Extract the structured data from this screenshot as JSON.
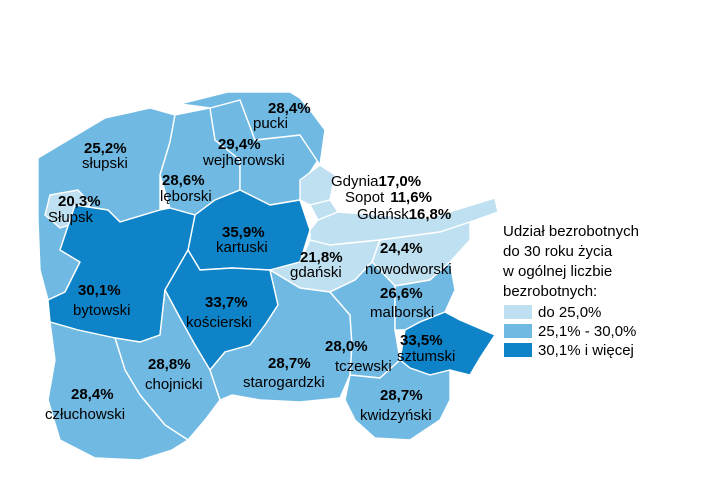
{
  "colors": {
    "low": "#bfe0f1",
    "mid": "#6fb9e3",
    "high": "#0e83c8",
    "border": "#ffffff"
  },
  "legend": {
    "title_lines": [
      "Udział bezrobotnych",
      "do 30 roku życia",
      "w ogólnej liczbie",
      "bezrobotnych:"
    ],
    "items": [
      {
        "label": "do 25,0%",
        "level": "low"
      },
      {
        "label": "25,1% - 30,0%",
        "level": "mid"
      },
      {
        "label": "30,1% i więcej",
        "level": "high"
      }
    ]
  },
  "regions": [
    {
      "id": "pucki",
      "name": "pucki",
      "value": "28,4%",
      "level": "mid"
    },
    {
      "id": "slupski",
      "name": "słupski",
      "value": "25,2%",
      "level": "mid"
    },
    {
      "id": "wejherowski",
      "name": "wejherowski",
      "value": "29,4%",
      "level": "mid"
    },
    {
      "id": "leborski",
      "name": "lęborski",
      "value": "28,6%",
      "level": "mid"
    },
    {
      "id": "slupsk",
      "name": "Słupsk",
      "value": "20,3%",
      "level": "low"
    },
    {
      "id": "kartuski",
      "name": "kartuski",
      "value": "35,9%",
      "level": "high"
    },
    {
      "id": "gdanski",
      "name": "gdański",
      "value": "21,8%",
      "level": "low"
    },
    {
      "id": "nowodworski",
      "name": "nowodworski",
      "value": "24,4%",
      "level": "low"
    },
    {
      "id": "bytowski",
      "name": "bytowski",
      "value": "30,1%",
      "level": "high"
    },
    {
      "id": "koscierski",
      "name": "kościerski",
      "value": "33,7%",
      "level": "high"
    },
    {
      "id": "malborski",
      "name": "malborski",
      "value": "26,6%",
      "level": "mid"
    },
    {
      "id": "sztumski",
      "name": "sztumski",
      "value": "33,5%",
      "level": "high"
    },
    {
      "id": "tczewski",
      "name": "tczewski",
      "value": "28,0%",
      "level": "mid"
    },
    {
      "id": "chojnicki",
      "name": "chojnicki",
      "value": "28,8%",
      "level": "mid"
    },
    {
      "id": "starogardzki",
      "name": "starogardzki",
      "value": "28,7%",
      "level": "mid"
    },
    {
      "id": "czluchowski",
      "name": "człuchowski",
      "value": "28,4%",
      "level": "mid"
    },
    {
      "id": "kwidzynski",
      "name": "kwidzyński",
      "value": "28,7%",
      "level": "mid"
    },
    {
      "id": "gdynia",
      "name": "Gdynia",
      "value": "17,0%",
      "level": "low"
    },
    {
      "id": "sopot",
      "name": "Sopot",
      "value": "11,6%",
      "level": "low"
    },
    {
      "id": "gdansk",
      "name": "Gdańsk",
      "value": "16,8%",
      "level": "low"
    }
  ]
}
